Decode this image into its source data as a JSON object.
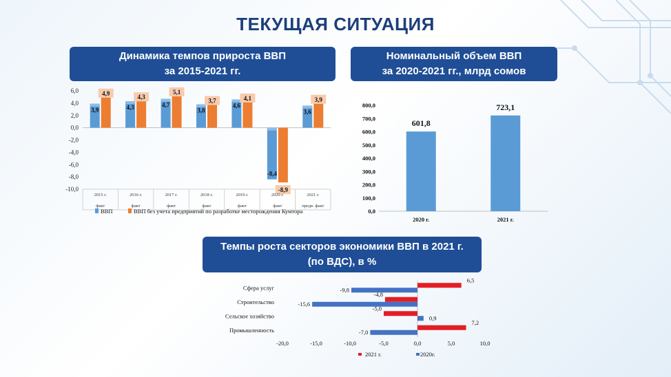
{
  "page_title": "ТЕКУЩАЯ СИТУАЦИЯ",
  "panels": {
    "gdp_growth": {
      "title_line1": "Динамика темпов прироста ВВП",
      "title_line2": "за 2015-2021 гг."
    },
    "nominal_gdp": {
      "title_line1": "Номинальный объем ВВП",
      "title_line2": "за 2020-2021 гг., млрд сомов"
    },
    "sectors": {
      "title_line1": "Темпы роста секторов экономики ВВП в 2021 г.",
      "title_line2": "(по ВДС), в %"
    }
  },
  "colors": {
    "blue": "#5b9bd5",
    "orange": "#ed7d31",
    "red": "#e31e24",
    "navy": "#4472c4",
    "label_bg": "#f8cbad"
  },
  "chart_data": [
    {
      "type": "bar",
      "categories": [
        "2015 г.",
        "2016 г.",
        "2017 г.",
        "2018 г.",
        "2019 г.",
        "2020 г.",
        "2021 г."
      ],
      "sublabels": [
        "факт",
        "факт",
        "факт",
        "факт",
        "факт",
        "факт",
        "предв. факт"
      ],
      "series": [
        {
          "name": "ВВП",
          "values": [
            3.9,
            4.3,
            4.7,
            3.8,
            4.6,
            -8.4,
            3.6
          ]
        },
        {
          "name": "ВВП без учета предприятий по разработке месторождения Кумтора",
          "values": [
            4.9,
            4.3,
            5.1,
            3.7,
            4.1,
            -8.9,
            3.9
          ]
        }
      ],
      "data_labels": [
        [
          "3,9",
          "4,3",
          "4,7",
          "3,8",
          "4,6",
          "-8,4",
          "3,6"
        ],
        [
          "4,9",
          "4,3",
          "5,1",
          "3,7",
          "4,1",
          "-8,9",
          "3,9"
        ]
      ],
      "ylim": [
        -10,
        6
      ],
      "yticks": [
        6,
        4,
        2,
        0,
        -2,
        -4,
        -6,
        -8,
        -10
      ],
      "ytick_labels": [
        "6,0",
        "4,0",
        "2,0",
        "0,0",
        "-2,0",
        "-4,0",
        "-6,0",
        "-8,0",
        "-10,0"
      ],
      "legend": "bottom"
    },
    {
      "type": "bar",
      "categories": [
        "2020 г.",
        "2021 г."
      ],
      "values": [
        601.8,
        723.1
      ],
      "data_labels": [
        "601,8",
        "723,1"
      ],
      "ylim": [
        0,
        800
      ],
      "yticks": [
        800,
        700,
        600,
        500,
        400,
        300,
        200,
        100,
        0
      ],
      "ytick_labels": [
        "800,0",
        "700,0",
        "600,0",
        "500,0",
        "400,0",
        "300,0",
        "200,0",
        "100,0",
        "0,0"
      ]
    },
    {
      "type": "bar",
      "orientation": "horizontal",
      "categories": [
        "Сфера услуг",
        "Строительство",
        "Сельское хозяйство",
        "Промышленность"
      ],
      "series": [
        {
          "name": "2021 г.",
          "values": [
            6.5,
            -4.8,
            -5.0,
            7.2
          ],
          "labels": [
            "6,5",
            "-4,8",
            "-5,0",
            "7,2"
          ]
        },
        {
          "name": "2020г.",
          "values": [
            -9.8,
            -15.6,
            0.9,
            -7.0
          ],
          "labels": [
            "-9,8",
            "-15,6",
            "0,9",
            "-7,0"
          ]
        }
      ],
      "xlim": [
        -20,
        10
      ],
      "xticks": [
        -20,
        -15,
        -10,
        -5,
        0,
        5,
        10
      ],
      "xtick_labels": [
        "-20,0",
        "-15,0",
        "-10,0",
        "-5,0",
        "0,0",
        "5,0",
        "10,0"
      ],
      "legend": "bottom"
    }
  ]
}
